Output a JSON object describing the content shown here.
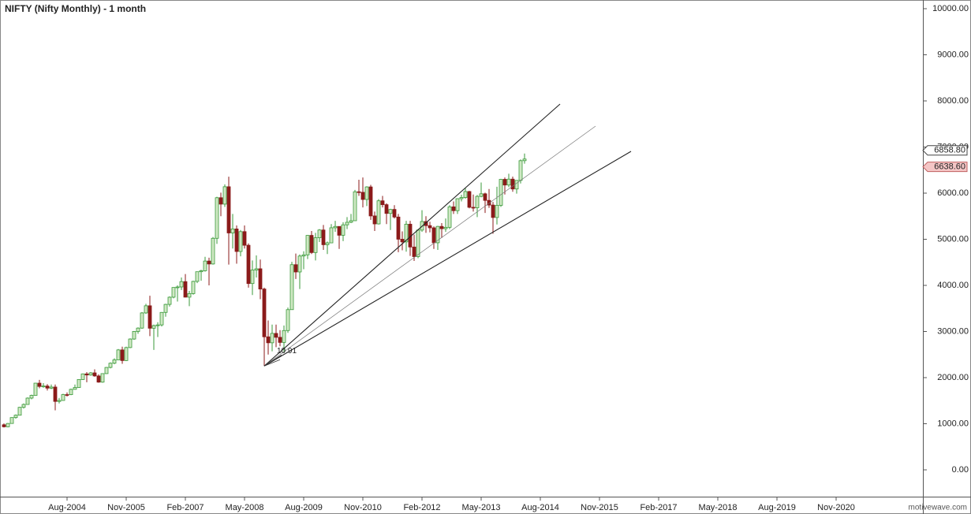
{
  "chart_data": {
    "type": "candlestick",
    "title": "NIFTY (Nifty Monthly) - 1 month",
    "x": [
      "Apr-2003",
      "May-2003",
      "Jun-2003",
      "Jul-2003",
      "Aug-2003",
      "Sep-2003",
      "Oct-2003",
      "Nov-2003",
      "Dec-2003",
      "Jan-2004",
      "Feb-2004",
      "Mar-2004",
      "Apr-2004",
      "May-2004",
      "Jun-2004",
      "Jul-2004",
      "Aug-2004",
      "Sep-2004",
      "Oct-2004",
      "Nov-2004",
      "Dec-2004",
      "Jan-2005",
      "Feb-2005",
      "Mar-2005",
      "Apr-2005",
      "May-2005",
      "Jun-2005",
      "Jul-2005",
      "Aug-2005",
      "Sep-2005",
      "Oct-2005",
      "Nov-2005",
      "Dec-2005",
      "Jan-2006",
      "Feb-2006",
      "Mar-2006",
      "Apr-2006",
      "May-2006",
      "Jun-2006",
      "Jul-2006",
      "Aug-2006",
      "Sep-2006",
      "Oct-2006",
      "Nov-2006",
      "Dec-2006",
      "Jan-2007",
      "Feb-2007",
      "Mar-2007",
      "Apr-2007",
      "May-2007",
      "Jun-2007",
      "Jul-2007",
      "Aug-2007",
      "Sep-2007",
      "Oct-2007",
      "Nov-2007",
      "Dec-2007",
      "Jan-2008",
      "Feb-2008",
      "Mar-2008",
      "Apr-2008",
      "May-2008",
      "Jun-2008",
      "Jul-2008",
      "Aug-2008",
      "Sep-2008",
      "Oct-2008",
      "Nov-2008",
      "Dec-2008",
      "Jan-2009",
      "Feb-2009",
      "Mar-2009",
      "Apr-2009",
      "May-2009",
      "Jun-2009",
      "Jul-2009",
      "Aug-2009",
      "Sep-2009",
      "Oct-2009",
      "Nov-2009",
      "Dec-2009",
      "Jan-2010",
      "Feb-2010",
      "Mar-2010",
      "Apr-2010",
      "May-2010",
      "Jun-2010",
      "Jul-2010",
      "Aug-2010",
      "Sep-2010",
      "Oct-2010",
      "Nov-2010",
      "Dec-2010",
      "Jan-2011",
      "Feb-2011",
      "Mar-2011",
      "Apr-2011",
      "May-2011",
      "Jun-2011",
      "Jul-2011",
      "Aug-2011",
      "Sep-2011",
      "Oct-2011",
      "Nov-2011",
      "Dec-2011",
      "Jan-2012",
      "Feb-2012",
      "Mar-2012",
      "Apr-2012",
      "May-2012",
      "Jun-2012",
      "Jul-2012",
      "Aug-2012",
      "Sep-2012",
      "Oct-2012",
      "Nov-2012",
      "Dec-2012",
      "Jan-2013",
      "Feb-2013",
      "Mar-2013",
      "Apr-2013",
      "May-2013",
      "Jun-2013",
      "Jul-2013",
      "Aug-2013",
      "Sep-2013",
      "Oct-2013",
      "Nov-2013",
      "Dec-2013",
      "Jan-2014",
      "Feb-2014",
      "Mar-2014",
      "Apr-2014"
    ],
    "open": [
      978,
      934,
      1006,
      1134,
      1185,
      1356,
      1418,
      1556,
      1615,
      1880,
      1809,
      1818,
      1772,
      1796,
      1484,
      1505,
      1632,
      1631,
      1746,
      1786,
      1959,
      2081,
      2057,
      2103,
      2036,
      1902,
      2087,
      2221,
      2312,
      2385,
      2601,
      2370,
      2652,
      2837,
      3001,
      3074,
      3403,
      3558,
      3071,
      3128,
      3143,
      3414,
      3588,
      3744,
      3955,
      3966,
      4082,
      3745,
      3822,
      4087,
      4296,
      4318,
      4528,
      4464,
      5021,
      5901,
      5762,
      6139,
      5137,
      5224,
      4735,
      5166,
      4870,
      4040,
      4333,
      4360,
      3921,
      2885,
      2755,
      2959,
      2874,
      2763,
      3021,
      3474,
      4449,
      4291,
      4636,
      4662,
      5084,
      4712,
      5033,
      5201,
      4882,
      4922,
      5249,
      5278,
      5087,
      5313,
      5368,
      5402,
      6030,
      6018,
      5863,
      6135,
      5506,
      5333,
      5834,
      5750,
      5560,
      5647,
      5482,
      5001,
      4943,
      5327,
      4832,
      4624,
      5199,
      5385,
      5296,
      5248,
      4924,
      5279,
      5229,
      5259,
      5703,
      5620,
      5880,
      5905,
      6035,
      5693,
      5683,
      5930,
      5986,
      5843,
      5742,
      5472,
      5735,
      6299,
      6176,
      6304,
      6090,
      6277,
      6704
    ],
    "high": [
      1006,
      1015,
      1140,
      1200,
      1365,
      1440,
      1570,
      1630,
      1885,
      1950,
      1880,
      1860,
      1850,
      1850,
      1560,
      1650,
      1680,
      1760,
      1850,
      1965,
      2090,
      2120,
      2120,
      2180,
      2070,
      2095,
      2230,
      2330,
      2420,
      2620,
      2670,
      2670,
      2850,
      3010,
      3090,
      3420,
      3600,
      3775,
      3150,
      3200,
      3420,
      3600,
      3760,
      3960,
      4000,
      4170,
      4245,
      3880,
      4100,
      4300,
      4340,
      4620,
      4600,
      5050,
      5920,
      6010,
      6190,
      6357,
      5550,
      5300,
      5200,
      5300,
      4910,
      4540,
      4650,
      4560,
      3950,
      3240,
      3150,
      3150,
      3030,
      3130,
      3520,
      4510,
      4690,
      4670,
      4740,
      5090,
      5180,
      5140,
      5220,
      5310,
      4950,
      5330,
      5400,
      5280,
      5370,
      5480,
      5550,
      6070,
      6290,
      6340,
      6150,
      6180,
      5600,
      5870,
      5940,
      5780,
      5660,
      5740,
      5550,
      5170,
      5400,
      5400,
      5100,
      5220,
      5630,
      5500,
      5380,
      5280,
      5290,
      5350,
      5450,
      5740,
      5820,
      5890,
      5965,
      6110,
      6050,
      5970,
      5960,
      6230,
      6010,
      6090,
      5810,
      6140,
      6310,
      6340,
      6420,
      6360,
      6280,
      6730,
      6858.8
    ],
    "low": [
      920,
      925,
      1000,
      1110,
      1180,
      1330,
      1410,
      1530,
      1610,
      1770,
      1780,
      1720,
      1750,
      1290,
      1440,
      1500,
      1590,
      1620,
      1740,
      1780,
      1950,
      1900,
      2040,
      2020,
      1890,
      1890,
      2080,
      2200,
      2290,
      2380,
      2300,
      2360,
      2640,
      2820,
      2950,
      3060,
      3380,
      2900,
      2600,
      2880,
      3110,
      3320,
      3540,
      3720,
      3650,
      3900,
      3740,
      3550,
      3800,
      4050,
      4100,
      4300,
      4000,
      4450,
      4900,
      5500,
      5700,
      4450,
      4800,
      4470,
      4630,
      4800,
      3950,
      3790,
      4170,
      3700,
      2252,
      2500,
      2570,
      2660,
      2680,
      2540,
      2970,
      3470,
      4140,
      3920,
      4350,
      4570,
      4680,
      4540,
      4940,
      4770,
      4680,
      4920,
      5160,
      4790,
      4960,
      5220,
      5350,
      5400,
      5940,
      5690,
      5720,
      5420,
      5180,
      5320,
      5690,
      5330,
      5200,
      5450,
      4720,
      4760,
      4730,
      4640,
      4530,
      4590,
      5160,
      5140,
      5150,
      4790,
      4770,
      5030,
      5160,
      5220,
      5550,
      5550,
      5820,
      5880,
      5670,
      5600,
      5480,
      5910,
      5570,
      5680,
      5120,
      5320,
      5700,
      5970,
      6130,
      6030,
      5990,
      6210,
      6638.6
    ],
    "close": [
      934,
      1006,
      1134,
      1185,
      1356,
      1418,
      1556,
      1615,
      1880,
      1809,
      1818,
      1772,
      1796,
      1484,
      1505,
      1632,
      1631,
      1746,
      1786,
      1959,
      2081,
      2057,
      2103,
      2036,
      1902,
      2087,
      2221,
      2312,
      2385,
      2601,
      2370,
      2652,
      2837,
      3001,
      3074,
      3403,
      3558,
      3071,
      3128,
      3143,
      3414,
      3588,
      3744,
      3955,
      3966,
      4082,
      3745,
      3822,
      4087,
      4296,
      4318,
      4528,
      4464,
      5021,
      5901,
      5762,
      6139,
      5137,
      5224,
      4735,
      5166,
      4870,
      4040,
      4333,
      4360,
      3921,
      2885,
      2755,
      2959,
      2874,
      2763,
      3021,
      3474,
      4449,
      4291,
      4636,
      4662,
      5084,
      4712,
      5033,
      5201,
      4882,
      4922,
      5249,
      5278,
      5087,
      5313,
      5368,
      5402,
      6030,
      6018,
      5863,
      6135,
      5506,
      5333,
      5834,
      5750,
      5560,
      5647,
      5482,
      5001,
      4943,
      5327,
      4832,
      4624,
      5199,
      5385,
      5296,
      5248,
      4924,
      5279,
      5229,
      5259,
      5703,
      5620,
      5880,
      5905,
      6035,
      5693,
      5683,
      5930,
      5986,
      5843,
      5742,
      5472,
      5735,
      6299,
      6176,
      6304,
      6090,
      6277,
      6704,
      6740
    ],
    "up_color": "#3a9a3a",
    "down_color": "#8b1a1a",
    "xlim": [
      "Mar-2003",
      "Sep-2022"
    ],
    "xticks": [
      "Aug-2004",
      "Nov-2005",
      "Feb-2007",
      "May-2008",
      "Aug-2009",
      "Nov-2010",
      "Feb-2012",
      "May-2013",
      "Aug-2014",
      "Nov-2015",
      "Feb-2017",
      "May-2018",
      "Aug-2019",
      "Nov-2020"
    ],
    "ylim": [
      -581,
      10188
    ],
    "yticks": [
      {
        "value": 0,
        "label": "0.00"
      },
      {
        "value": 1000,
        "label": "1000.00"
      },
      {
        "value": 2000,
        "label": "2000.00"
      },
      {
        "value": 3000,
        "label": "3000.00"
      },
      {
        "value": 4000,
        "label": "4000.00"
      },
      {
        "value": 5000,
        "label": "5000.00"
      },
      {
        "value": 6000,
        "label": "6000.00"
      },
      {
        "value": 7000,
        "label": "7000.00"
      },
      {
        "value": 8000,
        "label": "8000.00"
      },
      {
        "value": 9000,
        "label": "9000.00"
      },
      {
        "value": 10000,
        "label": "10000.00"
      }
    ],
    "trendlines": [
      {
        "x": [
          "Oct-2008",
          "Jan-2015"
        ],
        "y": [
          2252,
          7932
        ]
      },
      {
        "x": [
          "Oct-2008",
          "Oct-2015"
        ],
        "y": [
          2252,
          7453
        ]
      },
      {
        "x": [
          "Oct-2008",
          "Jul-2016"
        ],
        "y": [
          2252,
          6906
        ]
      }
    ],
    "annotation": "10.91",
    "price_labels": {
      "values": [
        6858.8,
        6638.6
      ],
      "value_labels": [
        "6858.80",
        "6638.60"
      ]
    },
    "watermark": "motivewave.com"
  }
}
